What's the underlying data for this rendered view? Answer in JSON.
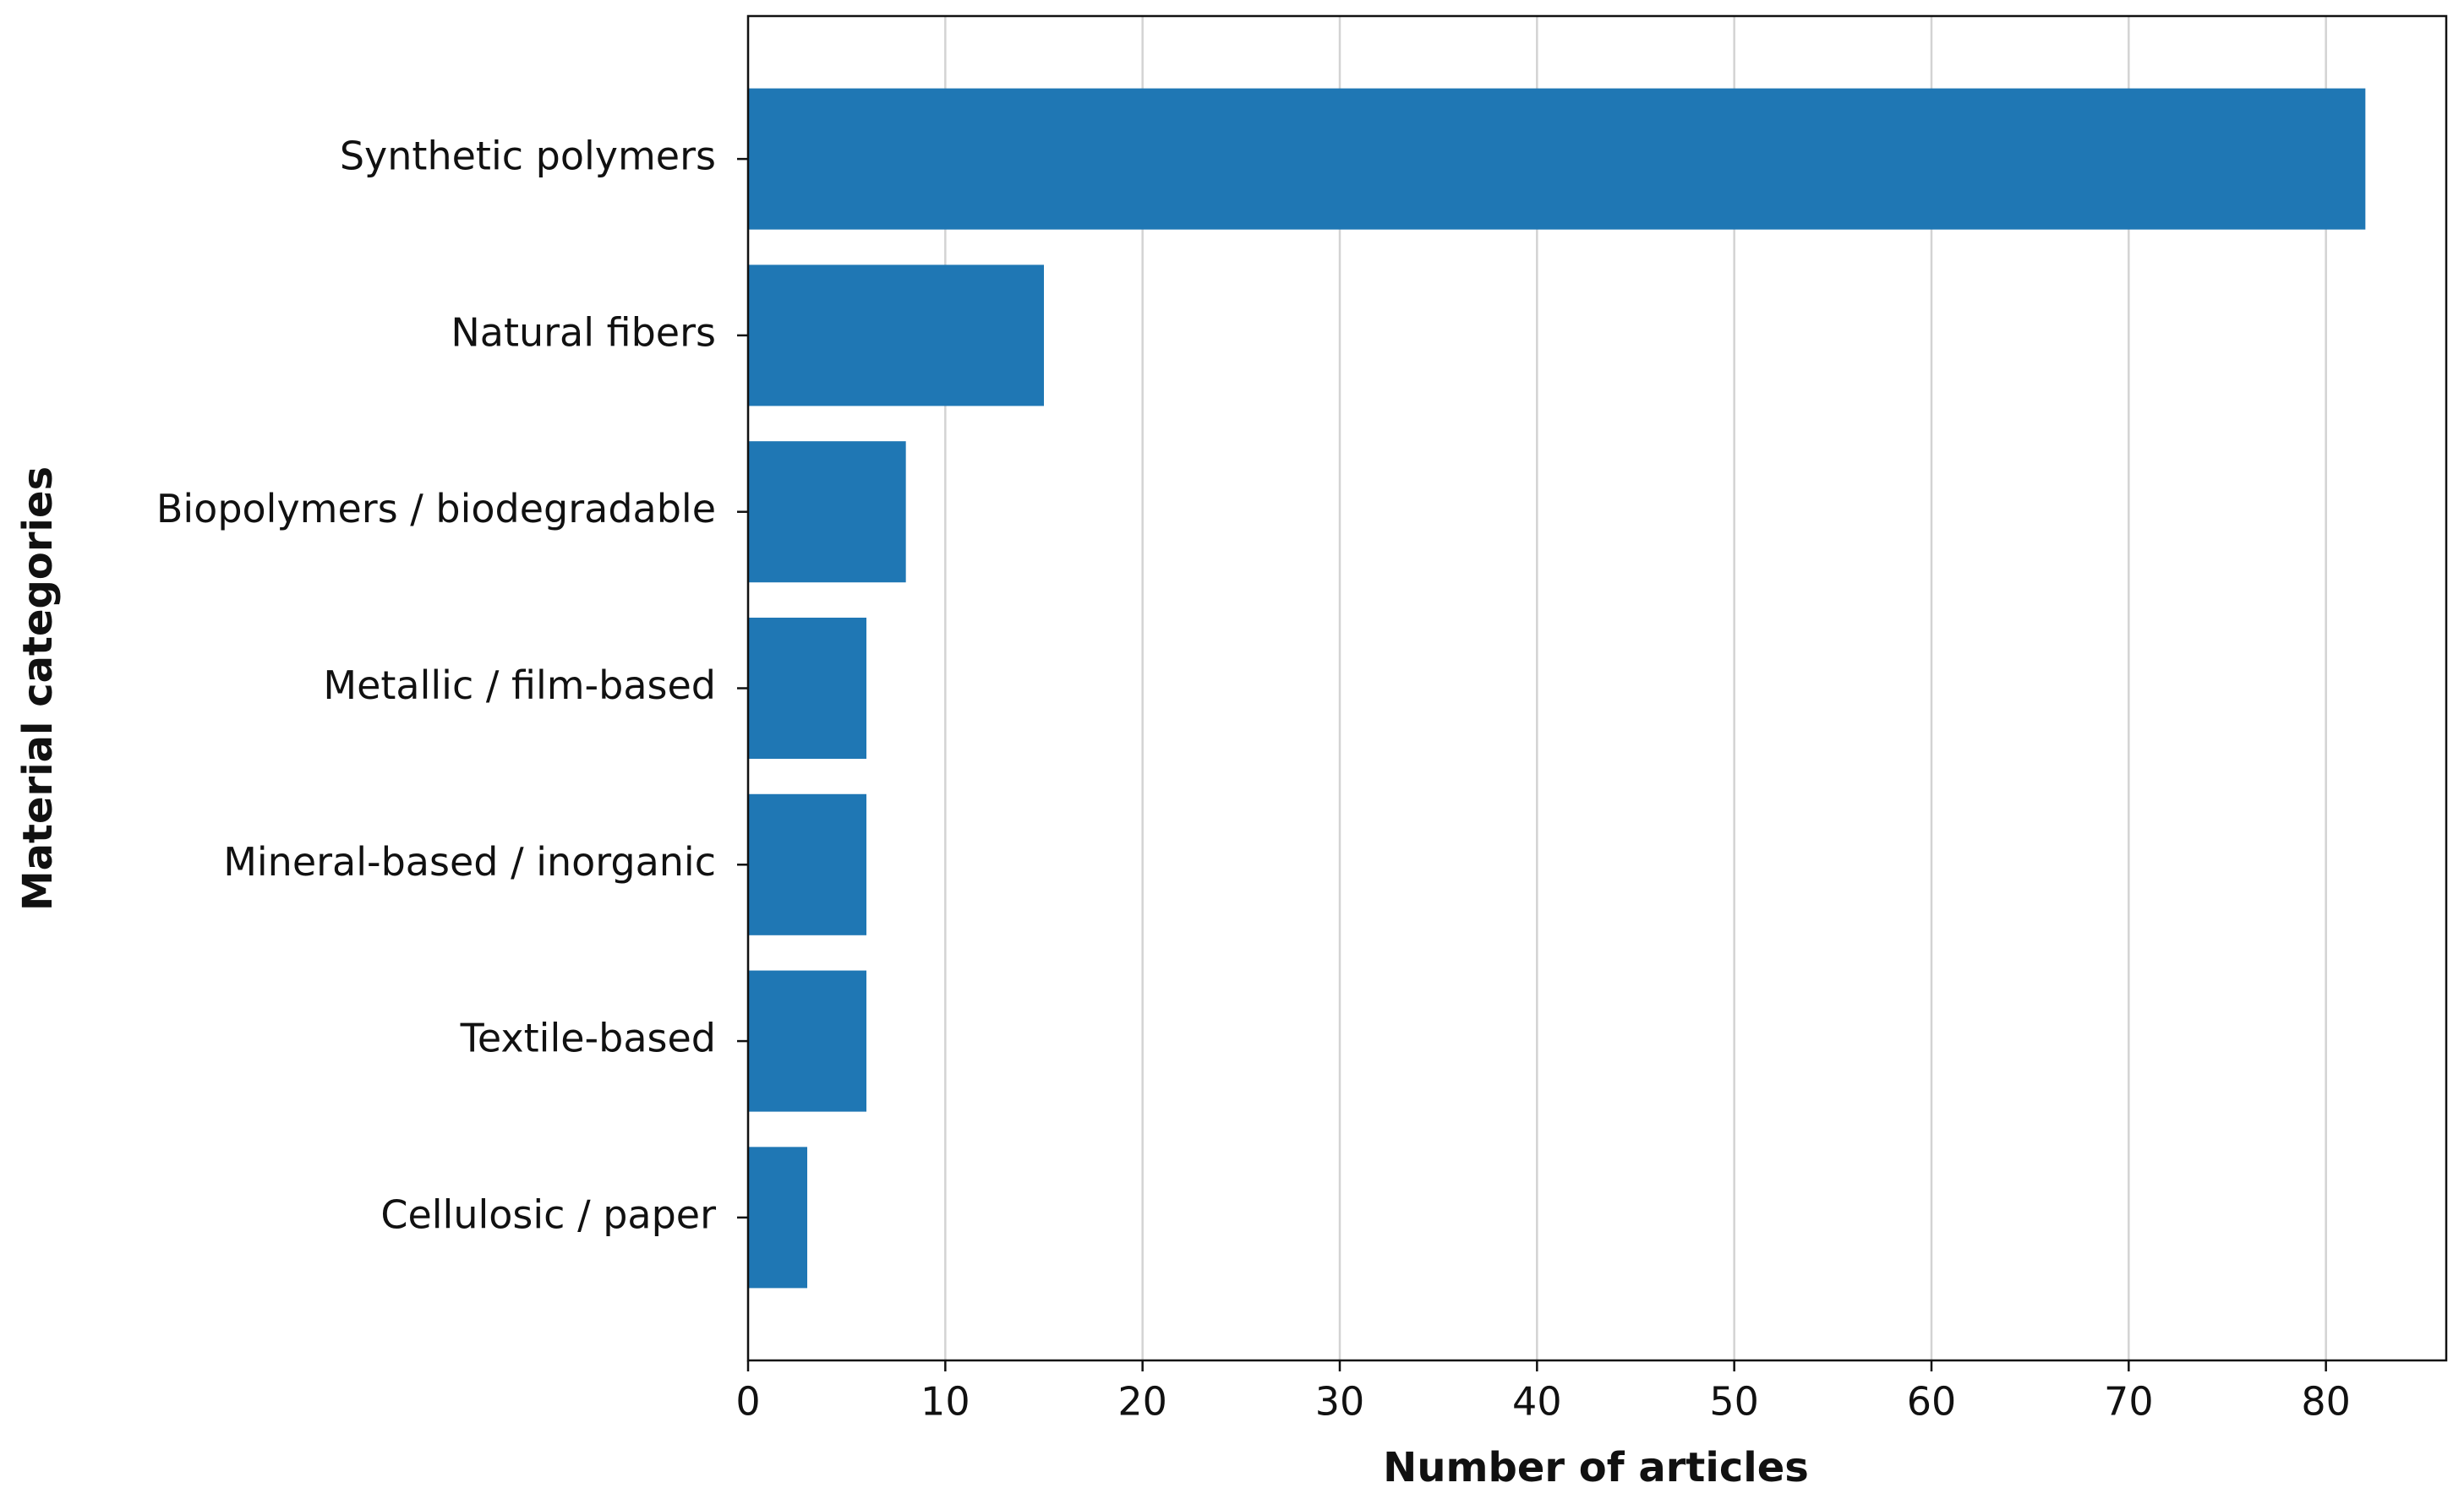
{
  "chart_data": {
    "type": "barh",
    "categories": [
      "Synthetic polymers",
      "Natural fibers",
      "Biopolymers / biodegradable",
      "Metallic / film-based",
      "Mineral-based / inorganic",
      "Textile-based",
      "Cellulosic / paper"
    ],
    "values": [
      82,
      15,
      8,
      6,
      6,
      6,
      3
    ],
    "color": "#1f77b4",
    "xlabel": "Number of articles",
    "ylabel": "Material categories",
    "xlim": [
      0,
      86.1
    ],
    "xticks": [
      0,
      10,
      20,
      30,
      40,
      50,
      60,
      70,
      80
    ],
    "grid": true
  }
}
